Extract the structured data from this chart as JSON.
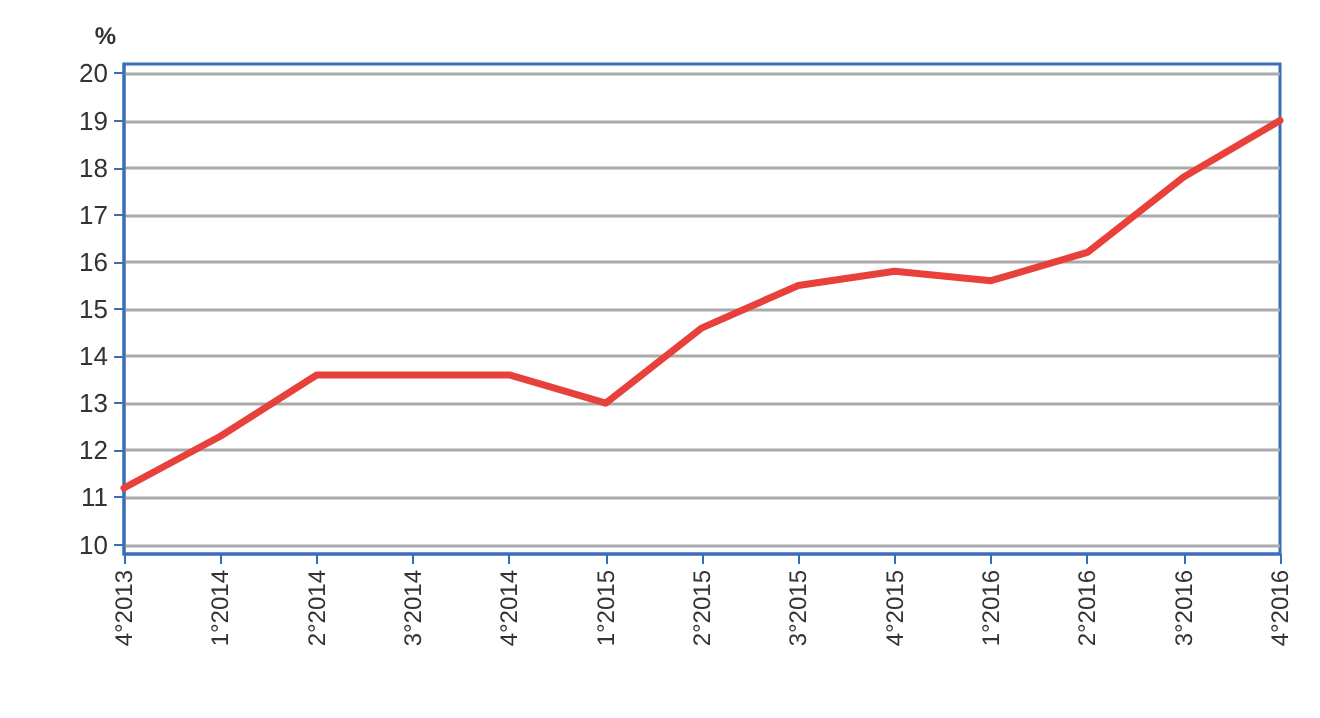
{
  "chart_data": {
    "type": "line",
    "ylabel": "%",
    "categories": [
      "4°2013",
      "1°2014",
      "2°2014",
      "3°2014",
      "4°2014",
      "1°2015",
      "2°2015",
      "3°2015",
      "4°2015",
      "1°2016",
      "2°2016",
      "3°2016",
      "4°2016"
    ],
    "series": [
      {
        "color": "#e8403a",
        "values": [
          11.2,
          12.3,
          13.6,
          13.6,
          13.6,
          13.0,
          14.6,
          15.5,
          15.8,
          15.6,
          16.2,
          17.8,
          19.0
        ]
      }
    ],
    "ylim": [
      9.8,
      20.2
    ],
    "yticks": [
      10,
      11,
      12,
      13,
      14,
      15,
      16,
      17,
      18,
      19,
      20
    ],
    "grid": "y",
    "marker": "none",
    "line_style": "solid"
  }
}
